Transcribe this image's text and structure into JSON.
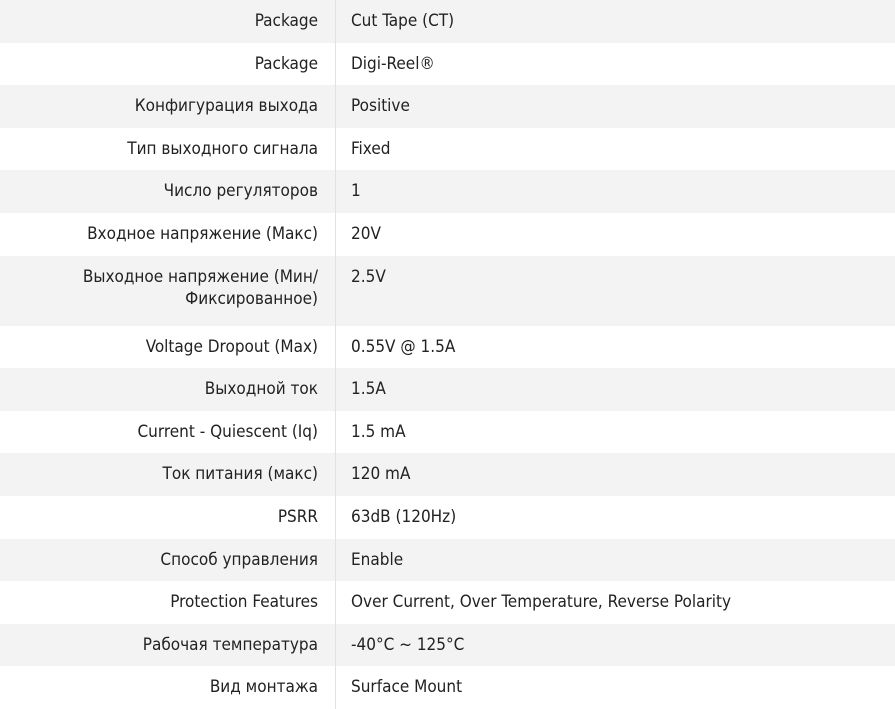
{
  "rows": [
    {
      "label": "Package",
      "value": "Cut Tape (CT)"
    },
    {
      "label": "Package",
      "value": "Digi-Reel®"
    },
    {
      "label": "Конфигурация выхода",
      "value": "Positive"
    },
    {
      "label": "Тип выходного сигнала",
      "value": "Fixed"
    },
    {
      "label": "Число регуляторов",
      "value": "1"
    },
    {
      "label": "Входное напряжение (Макс)",
      "value": "20V"
    },
    {
      "label": "Выходное напряжение (Мин/ Фиксированное)",
      "value": "2.5V"
    },
    {
      "label": "Voltage Dropout (Max)",
      "value": "0.55V @ 1.5A"
    },
    {
      "label": "Выходной ток",
      "value": "1.5A"
    },
    {
      "label": "Current - Quiescent (Iq)",
      "value": "1.5 mA"
    },
    {
      "label": "Ток питания (макс)",
      "value": "120 mA"
    },
    {
      "label": "PSRR",
      "value": "63dB (120Hz)"
    },
    {
      "label": "Способ управления",
      "value": "Enable"
    },
    {
      "label": "Protection Features",
      "value": "Over Current, Over Temperature, Reverse Polarity"
    },
    {
      "label": "Рабочая температура",
      "value": "-40°C ~ 125°C"
    },
    {
      "label": "Вид монтажа",
      "value": "Surface Mount"
    }
  ]
}
